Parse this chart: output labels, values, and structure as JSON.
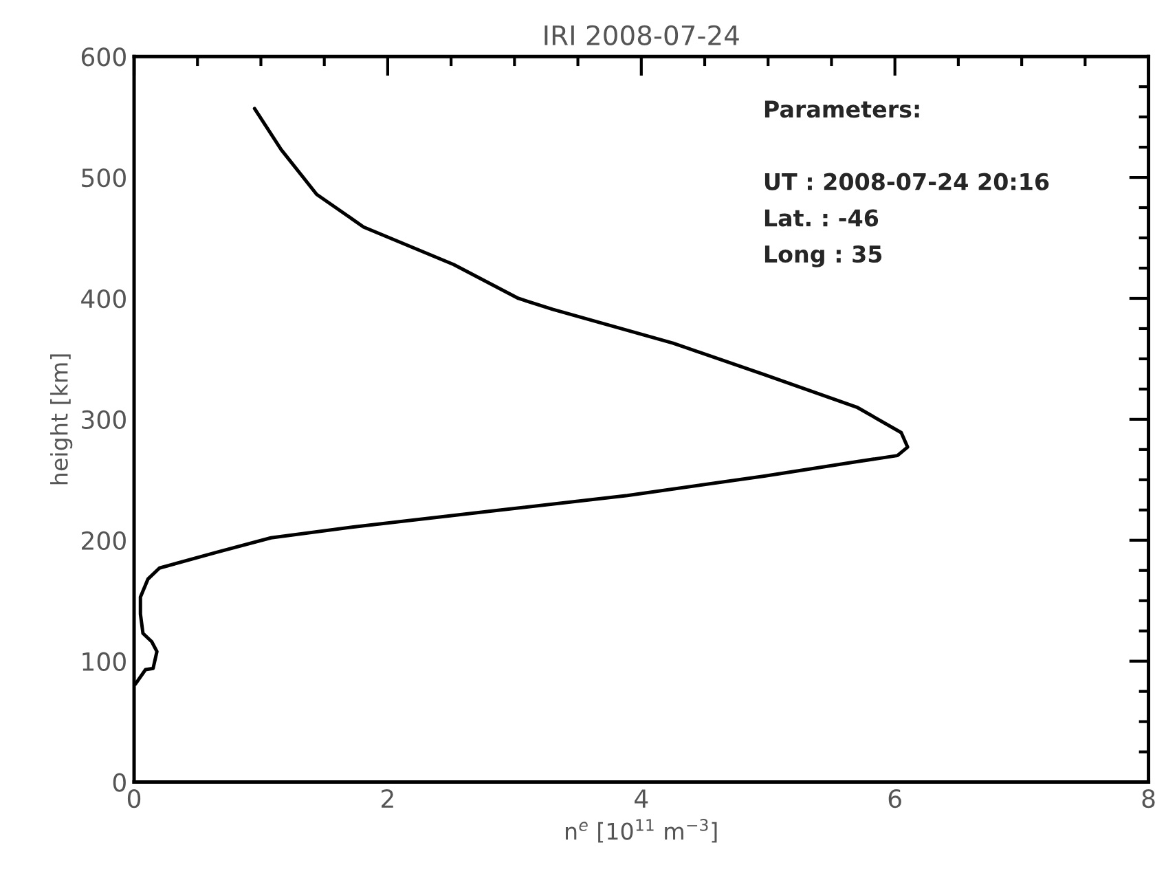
{
  "chart_data": {
    "type": "line",
    "title": "IRI 2008-07-24",
    "xlabel": "n$^{e}$ [10$^{11}$ m$^{−3}$]",
    "ylabel": "height [km]",
    "xlim": [
      0,
      8
    ],
    "xticks": [
      0,
      2,
      4,
      6,
      8
    ],
    "ylim": [
      0,
      600
    ],
    "yticks": [
      0,
      100,
      200,
      300,
      400,
      500,
      600
    ],
    "grid": false,
    "marker": "none",
    "line_style": "solid",
    "annotations": [
      "Parameters:",
      "UT : 2008-07-24 20:16",
      "Lat. : -46",
      "Long : 35"
    ],
    "series": [
      {
        "color": "#000000",
        "x": [
          0.01,
          0.09,
          0.15,
          0.18,
          0.14,
          0.07,
          0.05,
          0.05,
          0.11,
          0.2,
          0.65,
          1.08,
          1.73,
          2.81,
          3.89,
          4.97,
          5.7,
          6.02,
          6.1,
          6.05,
          5.7,
          4.97,
          4.25,
          3.3,
          3.03,
          2.52,
          1.81,
          1.44,
          1.16,
          0.95
        ],
        "values": [
          81,
          93,
          94,
          108,
          116,
          123,
          139,
          153,
          168,
          177,
          190,
          202,
          211,
          224,
          237,
          253,
          265,
          270,
          277,
          289,
          310,
          337,
          363,
          391,
          400,
          428,
          459,
          486,
          523,
          557
        ]
      }
    ]
  }
}
